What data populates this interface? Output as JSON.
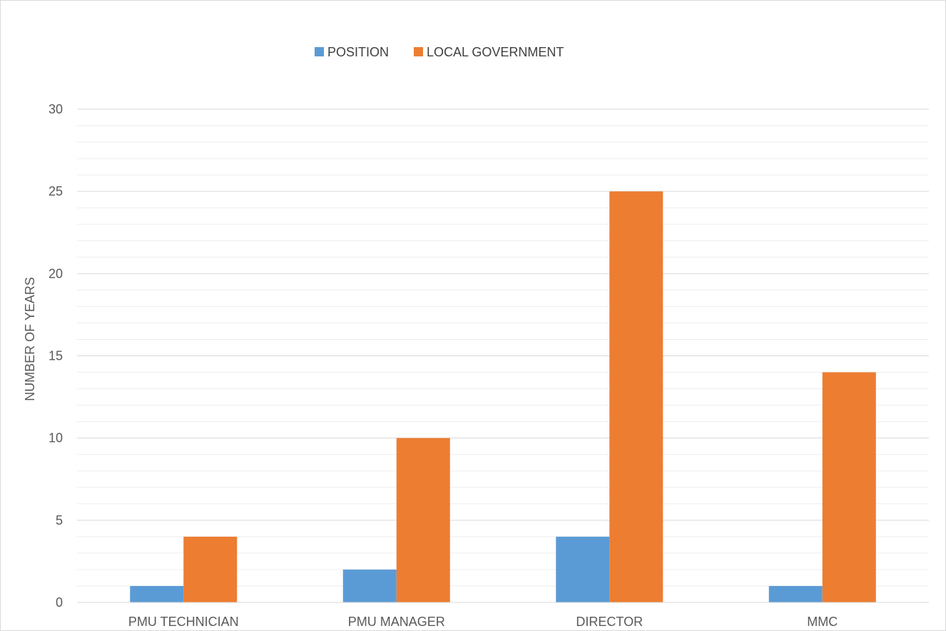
{
  "chart_data": {
    "type": "bar",
    "title": "",
    "xlabel": "",
    "ylabel": "NUMBER OF YEARS",
    "categories": [
      "PMU TECHNICIAN",
      "PMU MANAGER",
      "DIRECTOR",
      "MMC"
    ],
    "series": [
      {
        "name": "POSITION",
        "values": [
          1,
          2,
          4,
          1
        ],
        "color": "#5B9BD5"
      },
      {
        "name": "LOCAL GOVERNMENT",
        "values": [
          4,
          10,
          25,
          14
        ],
        "color": "#ED7D31"
      }
    ],
    "ylim": [
      0,
      30
    ],
    "yticks": [
      0,
      5,
      10,
      15,
      20,
      25,
      30
    ],
    "minor_grid_step": 1,
    "grid": true,
    "legend_position": "top-center"
  }
}
